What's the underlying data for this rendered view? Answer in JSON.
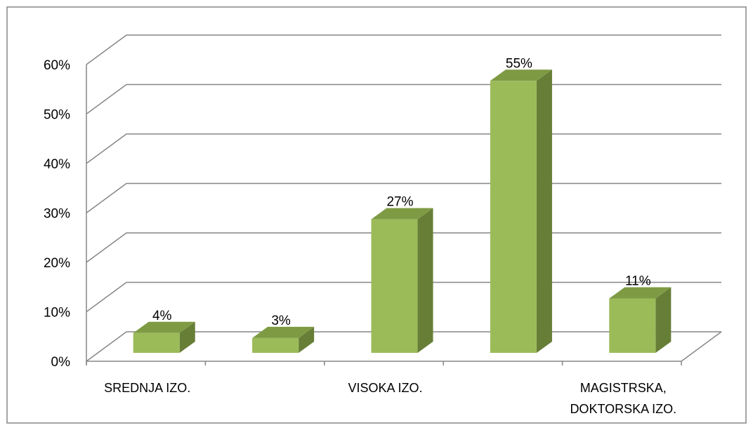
{
  "chart_data": {
    "type": "bar",
    "categories": [
      "SREDNJA IZO.",
      null,
      "VISOKA IZO.",
      null,
      "MAGISTRSKA, DOKTORSKA IZO."
    ],
    "values": [
      4,
      3,
      27,
      55,
      11
    ],
    "value_labels": [
      "4%",
      "3%",
      "27%",
      "55%",
      "11%"
    ],
    "color": "#9bbb59",
    "ylim": [
      0,
      60
    ],
    "yticks": [
      {
        "value": 0,
        "label": "0%"
      },
      {
        "value": 10,
        "label": "10%"
      },
      {
        "value": 20,
        "label": "20%"
      },
      {
        "value": 30,
        "label": "30%"
      },
      {
        "value": 40,
        "label": "40%"
      },
      {
        "value": 50,
        "label": "50%"
      },
      {
        "value": 60,
        "label": "60%"
      }
    ],
    "grid": true
  }
}
